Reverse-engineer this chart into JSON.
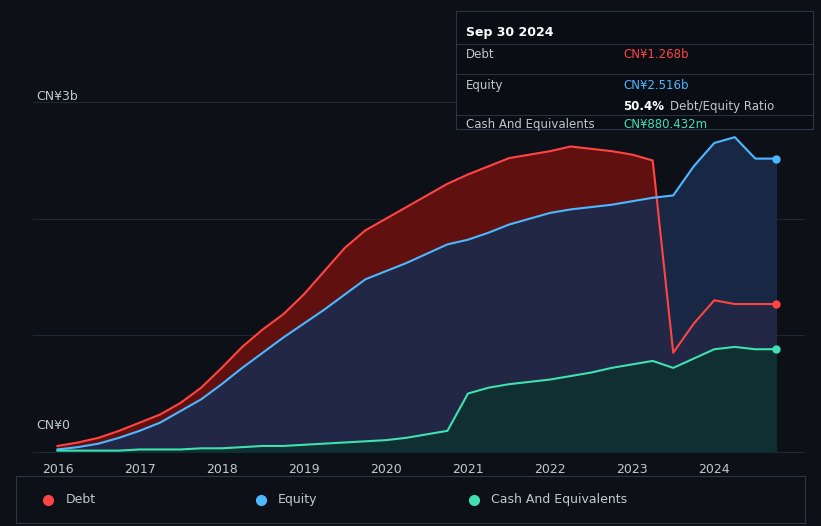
{
  "bg_color": "#0d1117",
  "plot_bg_color": "#0d1117",
  "debt_color": "#ff4444",
  "equity_color": "#4db8ff",
  "cash_color": "#40e0b0",
  "debt_fill_color": "#6b1010",
  "equity_fill_color": "#1a2a4a",
  "cash_fill_color": "#0d3030",
  "grid_color": "#1e2a38",
  "text_color": "#c0c8d0",
  "tooltip_bg": "#0a0e14",
  "tooltip_border": "#2a3545",
  "years": [
    2016.0,
    2016.25,
    2016.5,
    2016.75,
    2017.0,
    2017.25,
    2017.5,
    2017.75,
    2018.0,
    2018.25,
    2018.5,
    2018.75,
    2019.0,
    2019.25,
    2019.5,
    2019.75,
    2020.0,
    2020.25,
    2020.5,
    2020.75,
    2021.0,
    2021.25,
    2021.5,
    2021.75,
    2022.0,
    2022.25,
    2022.5,
    2022.75,
    2023.0,
    2023.25,
    2023.5,
    2023.75,
    2024.0,
    2024.25,
    2024.5,
    2024.75
  ],
  "debt": [
    0.05,
    0.08,
    0.12,
    0.18,
    0.25,
    0.32,
    0.42,
    0.55,
    0.72,
    0.9,
    1.05,
    1.18,
    1.35,
    1.55,
    1.75,
    1.9,
    2.0,
    2.1,
    2.2,
    2.3,
    2.38,
    2.45,
    2.52,
    2.55,
    2.58,
    2.62,
    2.6,
    2.58,
    2.55,
    2.5,
    0.85,
    1.1,
    1.3,
    1.268,
    1.268,
    1.268
  ],
  "equity": [
    0.02,
    0.04,
    0.07,
    0.12,
    0.18,
    0.25,
    0.35,
    0.45,
    0.58,
    0.72,
    0.85,
    0.98,
    1.1,
    1.22,
    1.35,
    1.48,
    1.55,
    1.62,
    1.7,
    1.78,
    1.82,
    1.88,
    1.95,
    2.0,
    2.05,
    2.08,
    2.1,
    2.12,
    2.15,
    2.18,
    2.2,
    2.45,
    2.65,
    2.7,
    2.516,
    2.516
  ],
  "cash": [
    0.01,
    0.01,
    0.01,
    0.01,
    0.02,
    0.02,
    0.02,
    0.03,
    0.03,
    0.04,
    0.05,
    0.05,
    0.06,
    0.07,
    0.08,
    0.09,
    0.1,
    0.12,
    0.15,
    0.18,
    0.5,
    0.55,
    0.58,
    0.6,
    0.62,
    0.65,
    0.68,
    0.72,
    0.75,
    0.78,
    0.72,
    0.8,
    0.88,
    0.9,
    0.88,
    0.8804
  ],
  "tooltip_date": "Sep 30 2024",
  "tooltip_debt_label": "Debt",
  "tooltip_debt_value": "CN¥1.268b",
  "tooltip_equity_label": "Equity",
  "tooltip_equity_value": "CN¥2.516b",
  "tooltip_ratio": "50.4%",
  "tooltip_ratio_label": "Debt/Equity Ratio",
  "tooltip_cash_label": "Cash And Equivalents",
  "tooltip_cash_value": "CN¥880.432m",
  "ylabel_top": "CN¥3b",
  "ylabel_bottom": "CN¥0",
  "legend_debt": "Debt",
  "legend_equity": "Equity",
  "legend_cash": "Cash And Equivalents",
  "xlim_min": 2015.7,
  "xlim_max": 2025.1,
  "ylim_min": -0.05,
  "ylim_max": 3.2,
  "xticks": [
    2016,
    2017,
    2018,
    2019,
    2020,
    2021,
    2022,
    2023,
    2024
  ]
}
